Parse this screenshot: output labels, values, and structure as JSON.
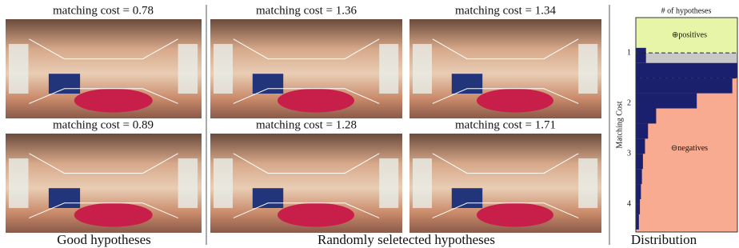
{
  "panels": [
    {
      "caption": "Good hypotheses",
      "images": [
        {
          "title": "matching cost = 0.78"
        },
        {
          "title": "matching cost = 0.89"
        }
      ]
    },
    {
      "caption": "Randomly seletected hypotheses",
      "images": [
        {
          "title": "matching cost = 1.36"
        },
        {
          "title": "matching cost = 1.34"
        },
        {
          "title": "matching cost = 1.28"
        },
        {
          "title": "matching cost = 1.71"
        }
      ]
    }
  ],
  "chart_data": {
    "type": "histogram",
    "orientation": "horizontal",
    "caption": "Distribution",
    "title": "# of hypotheses",
    "y_label": "Matching Cost",
    "bins": [
      0.9,
      1.2,
      1.5,
      1.8,
      2.1,
      2.4,
      2.7,
      3.0,
      3.3,
      3.6,
      3.9,
      4.2,
      4.5
    ],
    "values": [
      10,
      100,
      95,
      60,
      20,
      12,
      9,
      7,
      6,
      5,
      4,
      3
    ],
    "color": "#1a1f6e",
    "xlim": [
      0,
      100
    ],
    "ylim": [
      0.3,
      4.55
    ],
    "yticks": [
      1,
      2,
      3,
      4
    ],
    "positive_below": 1.0,
    "negative_above": 1.5,
    "positive_label": "⊕positives",
    "negative_label": "⊖negatives",
    "positive_color": "#e6f5a8",
    "neutral_color": "#c8c8c8",
    "negative_color": "#f8ab90"
  }
}
